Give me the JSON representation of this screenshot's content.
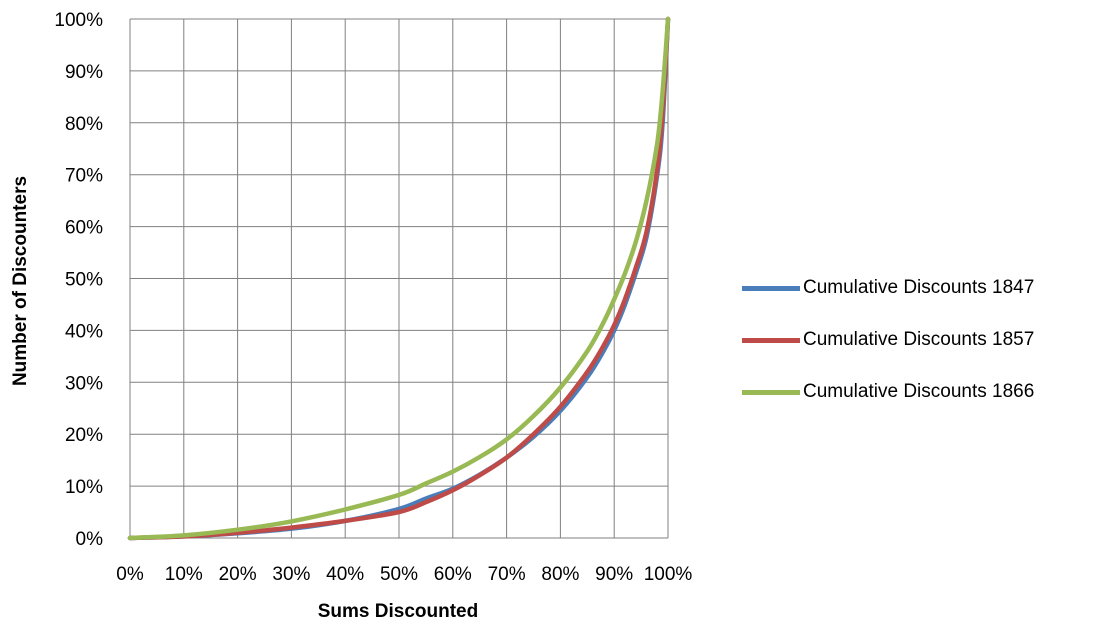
{
  "chart_data": {
    "type": "line",
    "xlabel": "Sums Discounted",
    "ylabel": "Number of Discounters",
    "xlim": [
      0,
      100
    ],
    "ylim": [
      0,
      100
    ],
    "x_ticks": [
      "0%",
      "10%",
      "20%",
      "30%",
      "40%",
      "50%",
      "60%",
      "70%",
      "80%",
      "90%",
      "100%"
    ],
    "y_ticks": [
      "0%",
      "10%",
      "20%",
      "30%",
      "40%",
      "50%",
      "60%",
      "70%",
      "80%",
      "90%",
      "100%"
    ],
    "grid": true,
    "legend_position": "right",
    "series": [
      {
        "name": "Cumulative Discounts 1847",
        "color": "#4a7ebb",
        "x": [
          0,
          10,
          20,
          30,
          40,
          50,
          55,
          60,
          65,
          70,
          75,
          80,
          85,
          88,
          90,
          92,
          94,
          96,
          98,
          99,
          100
        ],
        "y": [
          0,
          0.3,
          0.9,
          1.8,
          3.3,
          5.6,
          7.6,
          9.5,
          12.2,
          15.5,
          19.5,
          24.5,
          31,
          36,
          40,
          45,
          51,
          58,
          70,
          80,
          100
        ]
      },
      {
        "name": "Cumulative Discounts 1857",
        "color": "#be4b48",
        "x": [
          0,
          10,
          20,
          30,
          40,
          50,
          55,
          60,
          65,
          70,
          75,
          80,
          85,
          88,
          90,
          92,
          94,
          96,
          98,
          99,
          100
        ],
        "y": [
          0,
          0.3,
          1.0,
          2.0,
          3.3,
          5.0,
          6.9,
          9.2,
          12.1,
          15.5,
          20.0,
          25.3,
          32,
          37,
          41,
          46,
          52,
          59,
          71,
          82,
          100
        ]
      },
      {
        "name": "Cumulative Discounts 1866",
        "color": "#98b954",
        "x": [
          0,
          10,
          20,
          30,
          40,
          50,
          55,
          60,
          65,
          70,
          75,
          80,
          85,
          88,
          90,
          92,
          94,
          96,
          98,
          99,
          100
        ],
        "y": [
          0,
          0.5,
          1.6,
          3.2,
          5.5,
          8.3,
          10.5,
          12.8,
          15.6,
          19,
          23.5,
          29,
          36,
          41.5,
          46,
          51,
          57,
          65,
          76,
          86,
          100
        ]
      }
    ]
  }
}
